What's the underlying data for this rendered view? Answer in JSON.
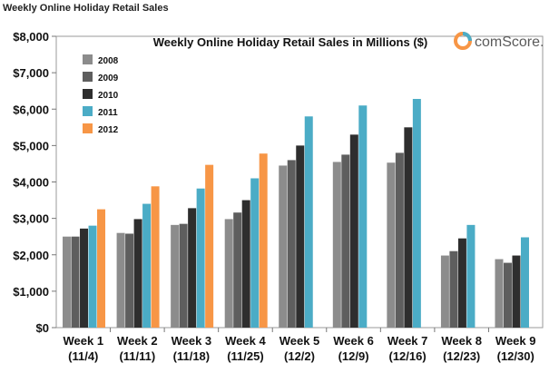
{
  "page_title": "Weekly Online Holiday Retail Sales",
  "chart_data": {
    "type": "bar",
    "title": "Weekly Online Holiday Retail Sales in Millions ($)",
    "logo_text": "comScore.",
    "categories": [
      [
        "Week 1",
        "(11/4)"
      ],
      [
        "Week 2",
        "(11/11)"
      ],
      [
        "Week 3",
        "(11/18)"
      ],
      [
        "Week 4",
        "(11/25)"
      ],
      [
        "Week 5",
        "(12/2)"
      ],
      [
        "Week 6",
        "(12/9)"
      ],
      [
        "Week 7",
        "(12/16)"
      ],
      [
        "Week 8",
        "(12/23)"
      ],
      [
        "Week 9",
        "(12/30)"
      ]
    ],
    "series": [
      {
        "name": "2008",
        "color": "#8c8c8c",
        "values": [
          2500,
          2600,
          2820,
          2980,
          4450,
          4550,
          4530,
          1980,
          1880
        ]
      },
      {
        "name": "2009",
        "color": "#5e5e5e",
        "values": [
          2500,
          2580,
          2850,
          3160,
          4600,
          4750,
          4800,
          2100,
          1780
        ]
      },
      {
        "name": "2010",
        "color": "#2e2e2e",
        "values": [
          2720,
          2980,
          3280,
          3500,
          5000,
          5300,
          5500,
          2450,
          1980
        ]
      },
      {
        "name": "2011",
        "color": "#4bacc6",
        "values": [
          2800,
          3400,
          3820,
          4100,
          5800,
          6100,
          6280,
          2820,
          2480
        ]
      },
      {
        "name": "2012",
        "color": "#f79646",
        "values": [
          3250,
          3880,
          4470,
          4780,
          null,
          null,
          null,
          null,
          null
        ]
      }
    ],
    "yticks": [
      "$0",
      "$1,000",
      "$2,000",
      "$3,000",
      "$4,000",
      "$5,000",
      "$6,000",
      "$7,000",
      "$8,000"
    ],
    "ylim": [
      0,
      8000
    ],
    "grid": false,
    "legend_position": "top-left"
  }
}
